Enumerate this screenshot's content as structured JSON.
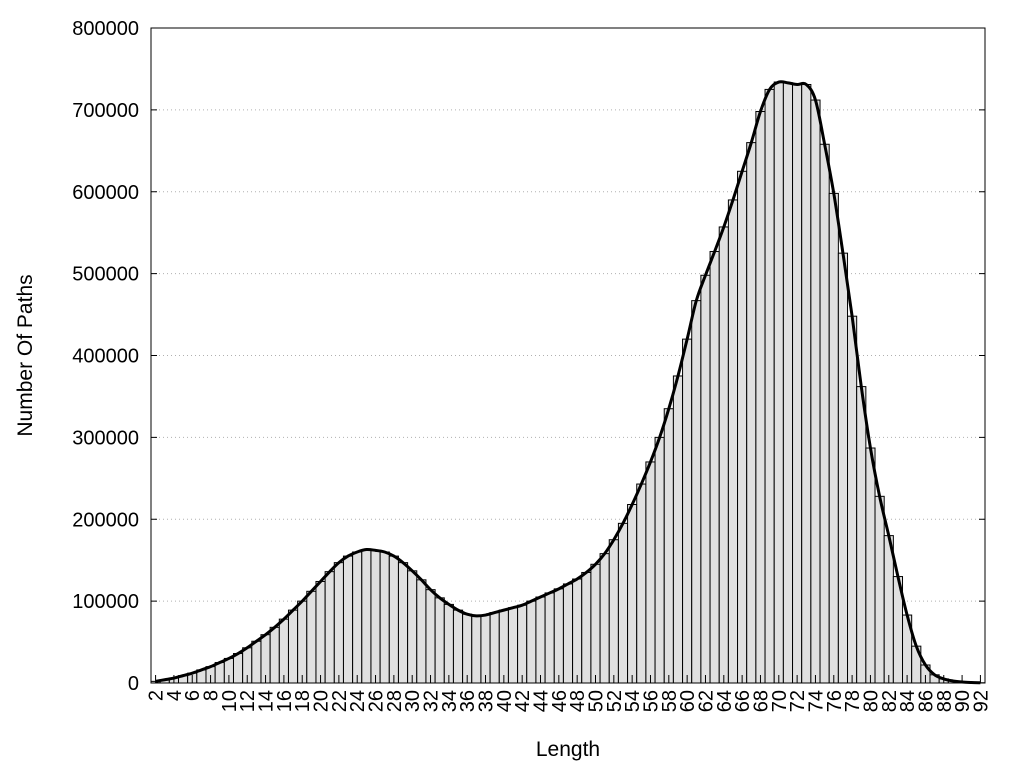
{
  "chart_data": {
    "type": "bar",
    "title": "",
    "xlabel": "Length",
    "ylabel": "Number Of Paths",
    "ylim": [
      0,
      800000
    ],
    "yticks": [
      0,
      100000,
      200000,
      300000,
      400000,
      500000,
      600000,
      700000,
      800000
    ],
    "ytick_labels": [
      "0",
      "100000",
      "200000",
      "300000",
      "400000",
      "500000",
      "600000",
      "700000",
      "800000"
    ],
    "xticks": [
      2,
      4,
      6,
      8,
      10,
      12,
      14,
      16,
      18,
      20,
      22,
      24,
      26,
      28,
      30,
      32,
      34,
      36,
      38,
      40,
      42,
      44,
      46,
      48,
      50,
      52,
      54,
      56,
      58,
      60,
      62,
      64,
      66,
      68,
      70,
      72,
      74,
      76,
      78,
      80,
      82,
      84,
      86,
      88,
      90,
      92
    ],
    "xtick_labels": [
      "2",
      "4",
      "6",
      "8",
      "10",
      "12",
      "14",
      "16",
      "18",
      "20",
      "22",
      "24",
      "26",
      "28",
      "30",
      "32",
      "34",
      "36",
      "38",
      "40",
      "42",
      "44",
      "46",
      "48",
      "50",
      "52",
      "54",
      "56",
      "58",
      "60",
      "62",
      "64",
      "66",
      "68",
      "70",
      "72",
      "74",
      "76",
      "78",
      "80",
      "82",
      "84",
      "86",
      "88",
      "90",
      "92"
    ],
    "grid": "horizontal-dotted",
    "series": [
      {
        "style": "bars",
        "x": [
          2,
          3,
          4,
          5,
          6,
          7,
          8,
          9,
          10,
          11,
          12,
          13,
          14,
          15,
          16,
          17,
          18,
          19,
          20,
          21,
          22,
          23,
          24,
          25,
          26,
          27,
          28,
          29,
          30,
          31,
          32,
          33,
          34,
          35,
          36,
          37,
          38,
          39,
          40,
          41,
          42,
          43,
          44,
          45,
          46,
          47,
          48,
          49,
          50,
          51,
          52,
          53,
          54,
          55,
          56,
          57,
          58,
          59,
          60,
          61,
          62,
          63,
          64,
          65,
          66,
          67,
          68,
          69,
          70,
          71,
          72,
          73,
          74,
          75,
          76,
          77,
          78,
          79,
          80,
          81,
          82,
          83,
          84,
          85,
          86,
          87,
          88,
          89,
          90,
          91,
          92
        ],
        "values": [
          2000,
          4000,
          6000,
          9000,
          12000,
          16000,
          20000,
          25000,
          30000,
          36000,
          43000,
          51000,
          59000,
          68000,
          78000,
          89000,
          100000,
          112000,
          124000,
          136000,
          147000,
          155000,
          160000,
          163000,
          162000,
          160000,
          155000,
          147000,
          137000,
          126000,
          114000,
          104000,
          96000,
          89000,
          84000,
          82000,
          83000,
          86000,
          89000,
          92000,
          95000,
          100000,
          105000,
          110000,
          115000,
          121000,
          127000,
          135000,
          145000,
          158000,
          175000,
          195000,
          218000,
          243000,
          270000,
          300000,
          335000,
          375000,
          420000,
          467000,
          498000,
          527000,
          557000,
          590000,
          625000,
          660000,
          698000,
          725000,
          734000,
          733000,
          731000,
          731000,
          712000,
          658000,
          598000,
          525000,
          448000,
          362000,
          287000,
          228000,
          180000,
          130000,
          83000,
          45000,
          22000,
          10000,
          5000,
          2500,
          1200,
          600,
          300
        ]
      },
      {
        "style": "smooth-line",
        "x": [
          2,
          3,
          4,
          5,
          6,
          7,
          8,
          9,
          10,
          11,
          12,
          13,
          14,
          15,
          16,
          17,
          18,
          19,
          20,
          21,
          22,
          23,
          24,
          25,
          26,
          27,
          28,
          29,
          30,
          31,
          32,
          33,
          34,
          35,
          36,
          37,
          38,
          39,
          40,
          41,
          42,
          43,
          44,
          45,
          46,
          47,
          48,
          49,
          50,
          51,
          52,
          53,
          54,
          55,
          56,
          57,
          58,
          59,
          60,
          61,
          62,
          63,
          64,
          65,
          66,
          67,
          68,
          69,
          70,
          71,
          72,
          73,
          74,
          75,
          76,
          77,
          78,
          79,
          80,
          81,
          82,
          83,
          84,
          85,
          86,
          87,
          88,
          89,
          90,
          91,
          92
        ],
        "values": [
          2000,
          4000,
          6000,
          9000,
          12000,
          16000,
          20000,
          25000,
          30000,
          36000,
          43000,
          51000,
          59000,
          68000,
          78000,
          89000,
          100000,
          112000,
          124000,
          136000,
          147000,
          155000,
          160000,
          163000,
          162000,
          160000,
          155000,
          147000,
          137000,
          126000,
          114000,
          104000,
          96000,
          89000,
          84000,
          82000,
          83000,
          86000,
          89000,
          92000,
          95000,
          100000,
          105000,
          110000,
          115000,
          121000,
          127000,
          135000,
          145000,
          158000,
          175000,
          195000,
          218000,
          243000,
          270000,
          300000,
          335000,
          375000,
          420000,
          467000,
          498000,
          527000,
          557000,
          590000,
          625000,
          660000,
          698000,
          725000,
          734000,
          733000,
          731000,
          731000,
          712000,
          658000,
          598000,
          525000,
          448000,
          362000,
          287000,
          228000,
          180000,
          130000,
          83000,
          45000,
          22000,
          10000,
          5000,
          2500,
          1200,
          600,
          300
        ]
      }
    ],
    "colors": {
      "bar_fill": "#e0e0e0",
      "bar_stroke": "#000000",
      "line": "#000000",
      "grid": "#b0b0b0",
      "axes": "#000000"
    }
  }
}
